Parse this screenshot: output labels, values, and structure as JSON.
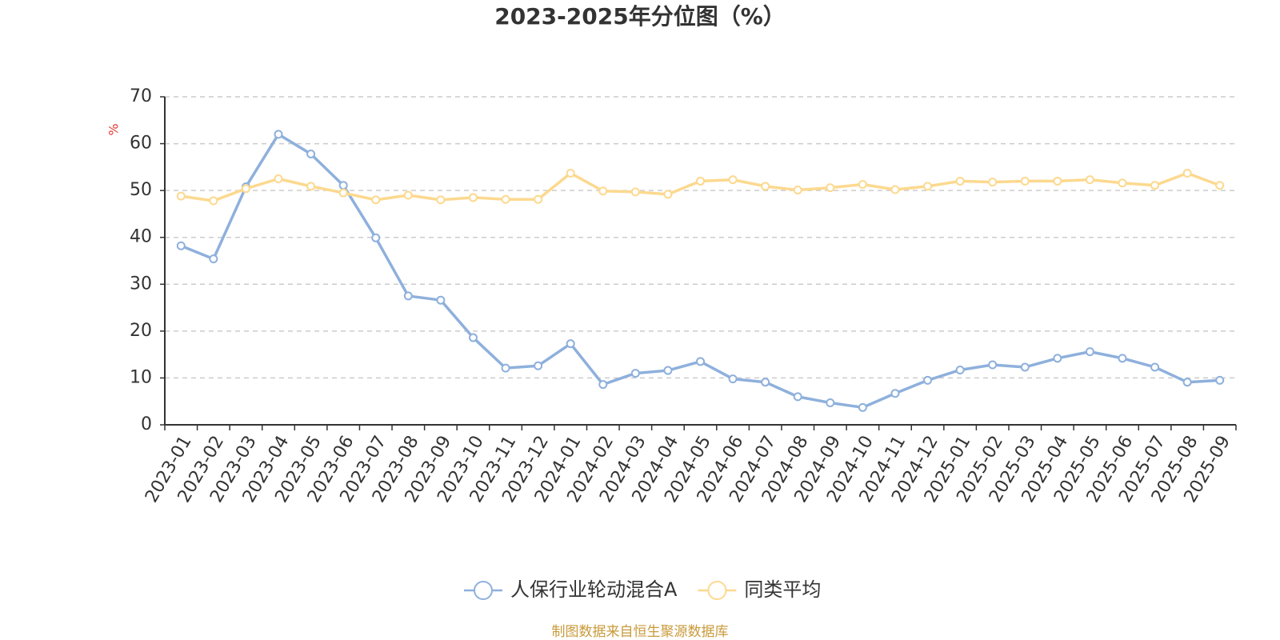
{
  "chart_data": {
    "type": "line",
    "title": "2023-2025年分位图（%）",
    "y_label": "%",
    "source": "制图数据来自恒生聚源数据库",
    "categories": [
      "2023-01",
      "2023-02",
      "2023-03",
      "2023-04",
      "2023-05",
      "2023-06",
      "2023-07",
      "2023-08",
      "2023-09",
      "2023-10",
      "2023-11",
      "2023-12",
      "2024-01",
      "2024-02",
      "2024-03",
      "2024-04",
      "2024-05",
      "2024-06",
      "2024-07",
      "2024-08",
      "2024-09",
      "2024-10",
      "2024-11",
      "2024-12",
      "2025-01",
      "2025-02",
      "2025-03",
      "2025-04",
      "2025-05",
      "2025-06",
      "2025-07",
      "2025-08",
      "2025-09"
    ],
    "series": [
      {
        "name": "人保行业轮动混合A",
        "color": "#8eb0dc",
        "values": [
          38.2,
          35.4,
          50.8,
          62.0,
          57.8,
          51.1,
          39.9,
          27.5,
          26.6,
          18.6,
          12.1,
          12.6,
          17.3,
          8.6,
          11.0,
          11.6,
          13.5,
          9.8,
          9.1,
          6.0,
          4.7,
          3.7,
          6.7,
          9.5,
          11.7,
          12.8,
          12.3,
          14.2,
          15.6,
          14.2,
          12.3,
          9.1,
          9.5
        ]
      },
      {
        "name": "同类平均",
        "color": "#fcd98f",
        "values": [
          48.8,
          47.8,
          50.4,
          52.5,
          50.9,
          49.5,
          48.0,
          49.0,
          48.0,
          48.5,
          48.1,
          48.1,
          53.7,
          49.9,
          49.7,
          49.2,
          52.0,
          52.3,
          50.9,
          50.1,
          50.6,
          51.3,
          50.2,
          50.9,
          52.0,
          51.8,
          52.0,
          52.0,
          52.3,
          51.6,
          51.1,
          53.7,
          51.1
        ]
      }
    ],
    "ylim": [
      0,
      70
    ],
    "yticks": [
      0,
      10,
      20,
      30,
      40,
      50,
      60,
      70
    ],
    "grid": true
  }
}
